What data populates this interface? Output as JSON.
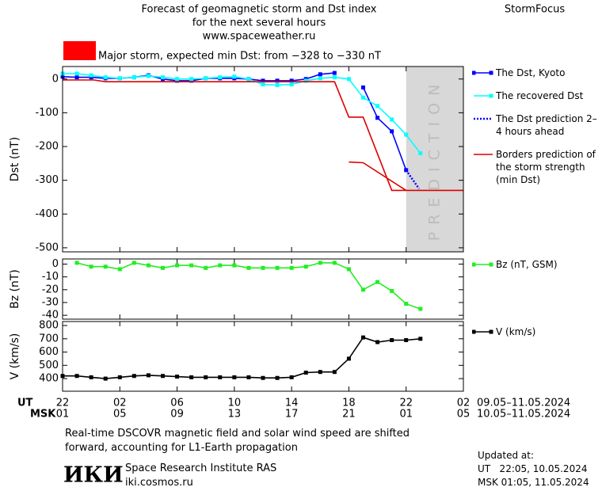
{
  "header": {
    "title_lines": [
      "Forecast of geomagnetic storm and Dst index",
      "for the next several hours",
      "www.spaceweather.ru"
    ],
    "brand": "StormFocus"
  },
  "storm_alert": {
    "text": "Major storm, expected min Dst: from −328 to −330 nT",
    "color": "#ff0000"
  },
  "x_axis": {
    "xlim": [
      0,
      28
    ],
    "xticks": [
      {
        "value": 0,
        "label": "22"
      },
      {
        "value": 4,
        "label": "02"
      },
      {
        "value": 8,
        "label": "06"
      },
      {
        "value": 12,
        "label": "10"
      },
      {
        "value": 16,
        "label": "14"
      },
      {
        "value": 20,
        "label": "18"
      },
      {
        "value": 24,
        "label": "22"
      },
      {
        "value": 28,
        "label": "02"
      }
    ],
    "msk_labels": [
      "01",
      "05",
      "09",
      "13",
      "17",
      "21",
      "01",
      "05"
    ],
    "ut_label": "UT",
    "msk_label": "MSK",
    "ut_range": "09.05–11.05.2024",
    "msk_range": "10.05–11.05.2024"
  },
  "chart_data": [
    {
      "type": "line",
      "ylabel": "Dst (nT)",
      "ylim": [
        -512,
        37
      ],
      "yticks": [
        0,
        -100,
        -200,
        -300,
        -400,
        -500
      ],
      "prediction": {
        "xlim": [
          24,
          28
        ],
        "label": "PREDICTION",
        "color": "#d8d8d8"
      },
      "series": [
        {
          "name": "The Dst, Kyoto",
          "color": "#0000ff",
          "marker": "square",
          "dotted": false,
          "x": [
            0,
            1,
            2,
            3,
            4,
            5,
            6,
            7,
            8,
            9,
            10,
            11,
            12,
            13,
            14,
            15,
            16,
            17,
            18,
            19,
            20,
            21,
            22,
            23,
            24
          ],
          "values": [
            7,
            5,
            5,
            2,
            2,
            5,
            11,
            0,
            -5,
            -5,
            2,
            2,
            2,
            0,
            -5,
            -5,
            -5,
            0,
            14,
            18,
            null,
            -25,
            -115,
            -155,
            -270
          ]
        },
        {
          "name": "The recovered Dst",
          "color": "#00ffff",
          "marker": "square",
          "dotted": false,
          "x": [
            0,
            1,
            2,
            3,
            4,
            5,
            6,
            7,
            8,
            9,
            10,
            11,
            12,
            13,
            14,
            15,
            16,
            17,
            18,
            19,
            20,
            21,
            22,
            23,
            24,
            25
          ],
          "values": [
            16,
            16,
            11,
            5,
            2,
            5,
            9,
            5,
            0,
            0,
            2,
            5,
            7,
            0,
            -16,
            -18,
            -16,
            -5,
            2,
            5,
            0,
            -55,
            -80,
            -120,
            -165,
            -220
          ]
        },
        {
          "name": "The Dst prediction 2–4 hours ahead",
          "color": "#0000ff",
          "marker": "none",
          "dotted": true,
          "x": [
            24,
            24.9
          ],
          "values": [
            -270,
            -325
          ]
        },
        {
          "name": "Borders prediction of the storm strength (min Dst)",
          "color": "#dd0000",
          "marker": "none",
          "dotted": false,
          "x": [
            0,
            2.2,
            3,
            19,
            20,
            21,
            23,
            28,
            null,
            20,
            21,
            24
          ],
          "values": [
            -3,
            -3,
            -8,
            -8,
            -113,
            -113,
            -330,
            -330,
            null,
            -246,
            -248,
            -330
          ]
        }
      ]
    },
    {
      "type": "line",
      "ylabel": "Bz (nT)",
      "ylim": [
        -43,
        4
      ],
      "yticks": [
        0,
        -10,
        -20,
        -30,
        -40
      ],
      "series": [
        {
          "name": "Bz (nT, GSM)",
          "color": "#22ee22",
          "marker": "square",
          "dotted": false,
          "x": [
            1,
            2,
            3,
            4,
            5,
            6,
            7,
            8,
            9,
            10,
            11,
            12,
            13,
            14,
            15,
            16,
            17,
            18,
            19,
            20,
            21,
            22,
            23,
            24,
            25
          ],
          "values": [
            1,
            -2,
            -2,
            -4,
            1,
            -1,
            -3,
            -1,
            -1,
            -3,
            -1,
            -1,
            -3,
            -3,
            -3,
            -3,
            -2,
            1,
            1,
            -4,
            -20,
            -14,
            -21,
            -31,
            -35
          ]
        }
      ]
    },
    {
      "type": "line",
      "ylabel": "V (km/s)",
      "ylim": [
        305,
        830
      ],
      "yticks": [
        400,
        500,
        600,
        700,
        800
      ],
      "series": [
        {
          "name": "V (km/s)",
          "color": "#000000",
          "marker": "square",
          "dotted": false,
          "x": [
            0,
            1,
            2,
            3,
            4,
            5,
            6,
            7,
            8,
            9,
            10,
            11,
            12,
            13,
            14,
            15,
            16,
            17,
            18,
            19,
            20,
            21,
            22,
            23,
            24,
            25
          ],
          "values": [
            420,
            420,
            410,
            400,
            410,
            420,
            425,
            420,
            415,
            410,
            410,
            410,
            410,
            410,
            405,
            405,
            410,
            445,
            450,
            450,
            550,
            710,
            675,
            690,
            690,
            700
          ]
        }
      ]
    }
  ],
  "footer": {
    "note_lines": [
      "Real-time DSCOVR magnetic field and solar wind speed are shifted",
      "forward, accounting for L1-Earth propagation"
    ],
    "logo": "ИКИ",
    "institute": "Space Research Institute RAS",
    "url": "iki.cosmos.ru",
    "updated_lines": [
      "Updated at:",
      "UT   22:05, 10.05.2024",
      "MSK 01:05, 11.05.2024"
    ]
  }
}
